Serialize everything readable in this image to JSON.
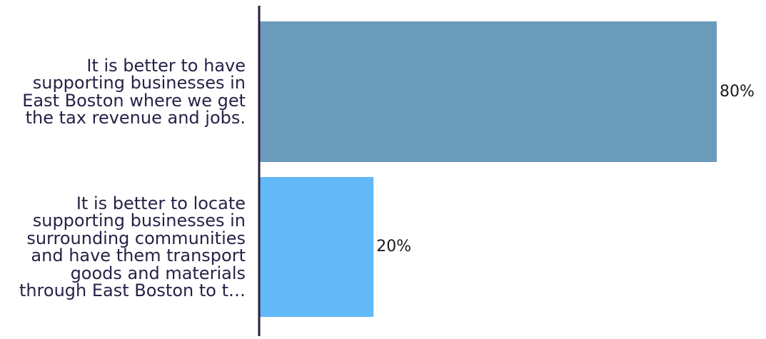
{
  "chart_data": {
    "type": "bar",
    "orientation": "horizontal",
    "categories": [
      "It is better to have supporting businesses in East Boston where we get the tax revenue and jobs.",
      "It is better to locate supporting businesses in surrounding communities and have them transport goods and materials through East Boston to t…"
    ],
    "category_label_lines": [
      [
        "It is better to have",
        "supporting businesses in",
        "East Boston where we get",
        "the tax revenue and jobs."
      ],
      [
        "It is better to locate",
        "supporting businesses in",
        "surrounding communities",
        "and have them transport",
        "goods and materials",
        "through East Boston to t…"
      ]
    ],
    "values": [
      80,
      20
    ],
    "value_labels": [
      "80%",
      "20%"
    ],
    "colors": [
      "#6b9bbb",
      "#63b8f8"
    ],
    "axis_color": "#2b1d3d",
    "xlim": [
      0,
      100
    ],
    "grid": false,
    "legend": "none"
  }
}
